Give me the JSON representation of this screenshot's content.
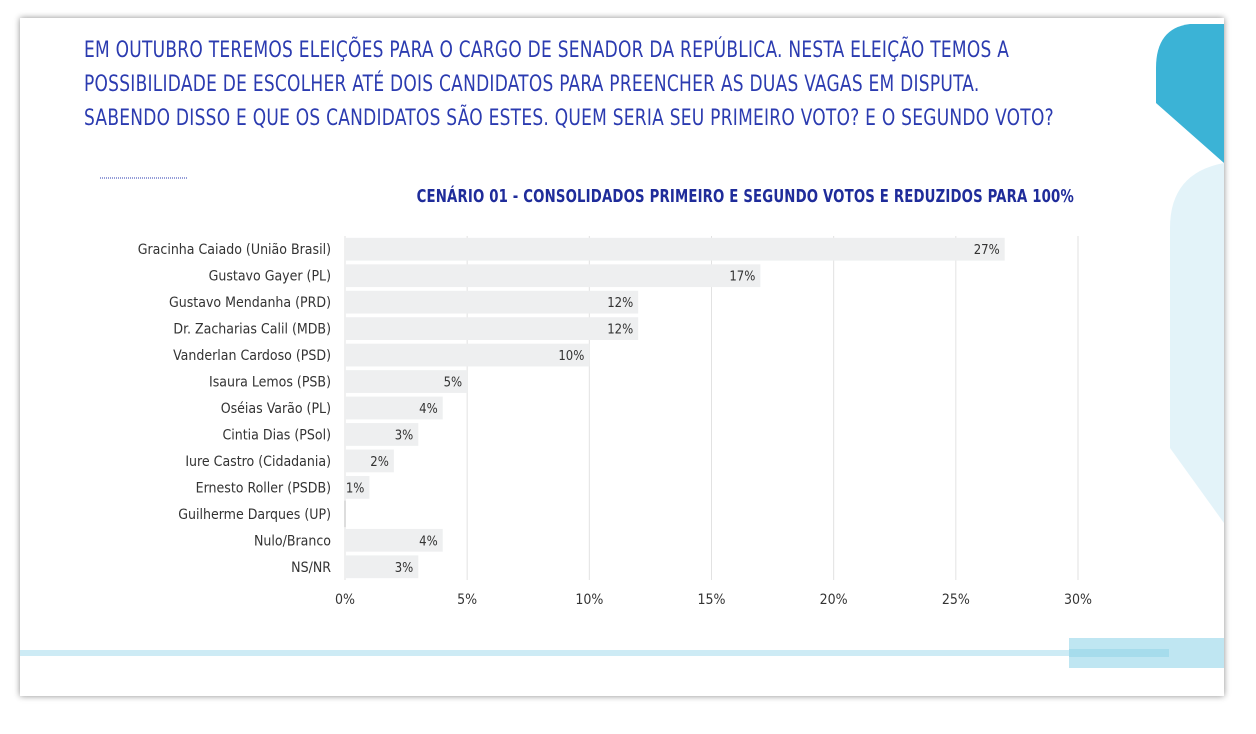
{
  "question": {
    "lines": [
      "EM OUTUBRO TEREMOS ELEIÇÕES PARA O CARGO DE SENADOR DA REPÚBLICA. NESTA ELEIÇÃO TEMOS A",
      "POSSIBILIDADE DE ESCOLHER ATÉ DOIS CANDIDATOS PARA PREENCHER AS DUAS VAGAS EM DISPUTA.",
      "SABENDO DISSO E QUE OS CANDIDATOS SÃO ESTES. QUEM SERIA SEU PRIMEIRO VOTO? E O SEGUNDO VOTO?"
    ]
  },
  "colors": {
    "question_text": "#2b3bb0",
    "title_text": "#1f2c9a",
    "bar_fill": "#eeeff0",
    "gridline": "#e2e2e2",
    "label_text": "#333333",
    "accent_dark": "#3bb3d6",
    "accent_light": "#e3f3f9"
  },
  "chart_data": {
    "type": "bar",
    "orientation": "horizontal",
    "title": "CENÁRIO 01 - CONSOLIDADOS PRIMEIRO E SEGUNDO VOTOS E REDUZIDOS PARA 100%",
    "categories": [
      "Gracinha Caiado (União Brasil)",
      "Gustavo Gayer (PL)",
      "Gustavo Mendanha (PRD)",
      "Dr. Zacharias Calil (MDB)",
      "Vanderlan Cardoso (PSD)",
      "Isaura Lemos (PSB)",
      "Oséias Varão (PL)",
      "Cintia Dias (PSol)",
      "Iure Castro (Cidadania)",
      "Ernesto Roller (PSDB)",
      "Guilherme Darques (UP)",
      "Nulo/Branco",
      "NS/NR"
    ],
    "values": [
      27,
      17,
      12,
      12,
      10,
      5,
      4,
      3,
      2,
      1,
      0,
      4,
      3
    ],
    "data_labels": [
      "27%",
      "17%",
      "12%",
      "12%",
      "10%",
      "5%",
      "4%",
      "3%",
      "2%",
      "1%",
      "",
      "4%",
      "3%"
    ],
    "xlim": [
      0,
      30
    ],
    "xticks": [
      0,
      5,
      10,
      15,
      20,
      25,
      30
    ],
    "xtick_labels": [
      "0%",
      "5%",
      "10%",
      "15%",
      "20%",
      "25%",
      "30%"
    ],
    "grid": true,
    "legend": "none"
  }
}
